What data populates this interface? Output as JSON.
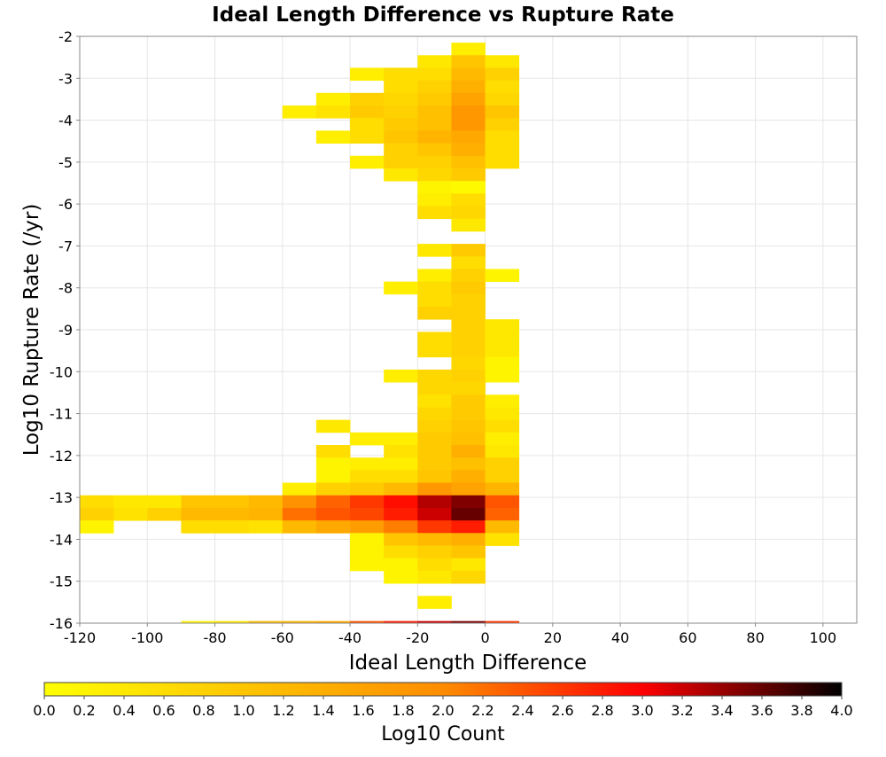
{
  "chart_data": {
    "type": "heatmap",
    "title": "Ideal Length Difference vs Rupture Rate",
    "xlabel": "Ideal Length Difference",
    "ylabel": "Log10 Rupture Rate (/yr)",
    "xlim": [
      -120,
      110
    ],
    "ylim": [
      -16,
      -2
    ],
    "x_ticks": [
      "-120",
      "-100",
      "-80",
      "-60",
      "-40",
      "-20",
      "0",
      "20",
      "40",
      "60",
      "80",
      "100"
    ],
    "y_ticks": [
      "-2",
      "-3",
      "-4",
      "-5",
      "-6",
      "-7",
      "-8",
      "-9",
      "-10",
      "-11",
      "-12",
      "-13",
      "-14",
      "-15",
      "-16"
    ],
    "grid": true,
    "bin_width": 10,
    "bin_height": 0.3,
    "colorbar": {
      "label": "Log10 Count",
      "min": 0.0,
      "max": 4.0,
      "ticks": [
        "0.0",
        "0.2",
        "0.4",
        "0.6",
        "0.8",
        "1.0",
        "1.2",
        "1.4",
        "1.6",
        "1.8",
        "2.0",
        "2.2",
        "2.4",
        "2.6",
        "2.8",
        "3.0",
        "3.2",
        "3.4",
        "3.6",
        "3.8",
        "4.0"
      ],
      "colors": [
        "#ffff00",
        "#ff8c00",
        "#ff0000",
        "#000000"
      ]
    },
    "cells": [
      {
        "x": -10,
        "y": -2.3,
        "v": 0.3
      },
      {
        "x": -20,
        "y": -2.6,
        "v": 0.4
      },
      {
        "x": -10,
        "y": -2.6,
        "v": 1.0
      },
      {
        "x": 0,
        "y": -2.6,
        "v": 0.4
      },
      {
        "x": -40,
        "y": -2.9,
        "v": 0.3
      },
      {
        "x": -30,
        "y": -2.9,
        "v": 0.6
      },
      {
        "x": -20,
        "y": -2.9,
        "v": 0.6
      },
      {
        "x": -10,
        "y": -2.9,
        "v": 1.2
      },
      {
        "x": 0,
        "y": -2.9,
        "v": 0.8
      },
      {
        "x": -30,
        "y": -3.2,
        "v": 0.6
      },
      {
        "x": -20,
        "y": -3.2,
        "v": 0.8
      },
      {
        "x": -10,
        "y": -3.2,
        "v": 1.4
      },
      {
        "x": 0,
        "y": -3.2,
        "v": 0.6
      },
      {
        "x": -50,
        "y": -3.5,
        "v": 0.3
      },
      {
        "x": -40,
        "y": -3.5,
        "v": 0.8
      },
      {
        "x": -30,
        "y": -3.5,
        "v": 0.7
      },
      {
        "x": -20,
        "y": -3.5,
        "v": 0.9
      },
      {
        "x": -10,
        "y": -3.5,
        "v": 1.6
      },
      {
        "x": 0,
        "y": -3.5,
        "v": 0.7
      },
      {
        "x": -60,
        "y": -3.8,
        "v": 0.3
      },
      {
        "x": -50,
        "y": -3.8,
        "v": 0.5
      },
      {
        "x": -40,
        "y": -3.8,
        "v": 0.9
      },
      {
        "x": -30,
        "y": -3.8,
        "v": 0.8
      },
      {
        "x": -20,
        "y": -3.8,
        "v": 1.1
      },
      {
        "x": -10,
        "y": -3.8,
        "v": 1.8
      },
      {
        "x": 0,
        "y": -3.8,
        "v": 1.0
      },
      {
        "x": -40,
        "y": -4.1,
        "v": 0.6
      },
      {
        "x": -30,
        "y": -4.1,
        "v": 0.9
      },
      {
        "x": -20,
        "y": -4.1,
        "v": 1.1
      },
      {
        "x": -10,
        "y": -4.1,
        "v": 1.8
      },
      {
        "x": 0,
        "y": -4.1,
        "v": 0.8
      },
      {
        "x": -50,
        "y": -4.4,
        "v": 0.3
      },
      {
        "x": -40,
        "y": -4.4,
        "v": 0.6
      },
      {
        "x": -30,
        "y": -4.4,
        "v": 1.0
      },
      {
        "x": -20,
        "y": -4.4,
        "v": 1.3
      },
      {
        "x": -10,
        "y": -4.4,
        "v": 1.5
      },
      {
        "x": 0,
        "y": -4.4,
        "v": 0.6
      },
      {
        "x": -30,
        "y": -4.7,
        "v": 0.8
      },
      {
        "x": -20,
        "y": -4.7,
        "v": 1.0
      },
      {
        "x": -10,
        "y": -4.7,
        "v": 1.4
      },
      {
        "x": 0,
        "y": -4.7,
        "v": 0.6
      },
      {
        "x": -40,
        "y": -5.0,
        "v": 0.3
      },
      {
        "x": -30,
        "y": -5.0,
        "v": 0.8
      },
      {
        "x": -20,
        "y": -5.0,
        "v": 0.8
      },
      {
        "x": -10,
        "y": -5.0,
        "v": 1.1
      },
      {
        "x": 0,
        "y": -5.0,
        "v": 0.6
      },
      {
        "x": -30,
        "y": -5.3,
        "v": 0.4
      },
      {
        "x": -20,
        "y": -5.3,
        "v": 0.7
      },
      {
        "x": -10,
        "y": -5.3,
        "v": 0.9
      },
      {
        "x": -20,
        "y": -5.6,
        "v": 0.2
      },
      {
        "x": -10,
        "y": -5.6,
        "v": 0.1
      },
      {
        "x": -20,
        "y": -5.9,
        "v": 0.3
      },
      {
        "x": -10,
        "y": -5.9,
        "v": 0.6
      },
      {
        "x": -20,
        "y": -6.2,
        "v": 0.6
      },
      {
        "x": -10,
        "y": -6.2,
        "v": 0.7
      },
      {
        "x": -10,
        "y": -6.5,
        "v": 0.4
      },
      {
        "x": -20,
        "y": -7.1,
        "v": 0.4
      },
      {
        "x": -10,
        "y": -7.1,
        "v": 0.9
      },
      {
        "x": -10,
        "y": -7.4,
        "v": 0.6
      },
      {
        "x": -20,
        "y": -7.7,
        "v": 0.3
      },
      {
        "x": -10,
        "y": -7.7,
        "v": 0.8
      },
      {
        "x": 0,
        "y": -7.7,
        "v": 0.2
      },
      {
        "x": -30,
        "y": -8.0,
        "v": 0.3
      },
      {
        "x": -20,
        "y": -8.0,
        "v": 0.6
      },
      {
        "x": -10,
        "y": -8.0,
        "v": 0.9
      },
      {
        "x": -20,
        "y": -8.3,
        "v": 0.6
      },
      {
        "x": -10,
        "y": -8.3,
        "v": 0.8
      },
      {
        "x": -20,
        "y": -8.6,
        "v": 0.8
      },
      {
        "x": -10,
        "y": -8.6,
        "v": 0.8
      },
      {
        "x": -10,
        "y": -8.9,
        "v": 0.8
      },
      {
        "x": 0,
        "y": -8.9,
        "v": 0.4
      },
      {
        "x": -20,
        "y": -9.2,
        "v": 0.6
      },
      {
        "x": -10,
        "y": -9.2,
        "v": 0.8
      },
      {
        "x": 0,
        "y": -9.2,
        "v": 0.4
      },
      {
        "x": -20,
        "y": -9.5,
        "v": 0.6
      },
      {
        "x": -10,
        "y": -9.5,
        "v": 0.8
      },
      {
        "x": 0,
        "y": -9.5,
        "v": 0.4
      },
      {
        "x": -10,
        "y": -9.8,
        "v": 0.7
      },
      {
        "x": 0,
        "y": -9.8,
        "v": 0.2
      },
      {
        "x": -30,
        "y": -10.1,
        "v": 0.3
      },
      {
        "x": -20,
        "y": -10.1,
        "v": 0.7
      },
      {
        "x": -10,
        "y": -10.1,
        "v": 0.8
      },
      {
        "x": 0,
        "y": -10.1,
        "v": 0.2
      },
      {
        "x": -20,
        "y": -10.4,
        "v": 0.7
      },
      {
        "x": -10,
        "y": -10.4,
        "v": 0.7
      },
      {
        "x": -20,
        "y": -10.7,
        "v": 0.5
      },
      {
        "x": -10,
        "y": -10.7,
        "v": 0.9
      },
      {
        "x": 0,
        "y": -10.7,
        "v": 0.3
      },
      {
        "x": -20,
        "y": -11.0,
        "v": 0.7
      },
      {
        "x": -10,
        "y": -11.0,
        "v": 0.9
      },
      {
        "x": 0,
        "y": -11.0,
        "v": 0.4
      },
      {
        "x": -50,
        "y": -11.3,
        "v": 0.4
      },
      {
        "x": -20,
        "y": -11.3,
        "v": 0.8
      },
      {
        "x": -10,
        "y": -11.3,
        "v": 1.0
      },
      {
        "x": 0,
        "y": -11.3,
        "v": 0.6
      },
      {
        "x": -40,
        "y": -11.6,
        "v": 0.3
      },
      {
        "x": -30,
        "y": -11.6,
        "v": 0.3
      },
      {
        "x": -20,
        "y": -11.6,
        "v": 0.9
      },
      {
        "x": -10,
        "y": -11.6,
        "v": 1.1
      },
      {
        "x": 0,
        "y": -11.6,
        "v": 0.3
      },
      {
        "x": -50,
        "y": -11.9,
        "v": 0.6
      },
      {
        "x": -30,
        "y": -11.9,
        "v": 0.5
      },
      {
        "x": -20,
        "y": -11.9,
        "v": 0.9
      },
      {
        "x": -10,
        "y": -11.9,
        "v": 1.4
      },
      {
        "x": 0,
        "y": -11.9,
        "v": 0.4
      },
      {
        "x": -50,
        "y": -12.2,
        "v": 0.2
      },
      {
        "x": -40,
        "y": -12.2,
        "v": 0.3
      },
      {
        "x": -30,
        "y": -12.2,
        "v": 0.3
      },
      {
        "x": -20,
        "y": -12.2,
        "v": 0.9
      },
      {
        "x": -10,
        "y": -12.2,
        "v": 1.1
      },
      {
        "x": 0,
        "y": -12.2,
        "v": 0.8
      },
      {
        "x": -50,
        "y": -12.5,
        "v": 0.2
      },
      {
        "x": -40,
        "y": -12.5,
        "v": 0.6
      },
      {
        "x": -30,
        "y": -12.5,
        "v": 0.6
      },
      {
        "x": -20,
        "y": -12.5,
        "v": 1.0
      },
      {
        "x": -10,
        "y": -12.5,
        "v": 1.4
      },
      {
        "x": 0,
        "y": -12.5,
        "v": 0.8
      },
      {
        "x": -60,
        "y": -12.8,
        "v": 0.3
      },
      {
        "x": -50,
        "y": -12.8,
        "v": 0.8
      },
      {
        "x": -40,
        "y": -12.8,
        "v": 0.9
      },
      {
        "x": -30,
        "y": -12.8,
        "v": 1.2
      },
      {
        "x": -20,
        "y": -12.8,
        "v": 1.8
      },
      {
        "x": -10,
        "y": -12.8,
        "v": 1.6
      },
      {
        "x": 0,
        "y": -12.8,
        "v": 1.3
      },
      {
        "x": -120,
        "y": -13.1,
        "v": 0.6
      },
      {
        "x": -110,
        "y": -13.1,
        "v": 0.4
      },
      {
        "x": -100,
        "y": -13.1,
        "v": 0.4
      },
      {
        "x": -90,
        "y": -13.1,
        "v": 1.0
      },
      {
        "x": -80,
        "y": -13.1,
        "v": 1.0
      },
      {
        "x": -70,
        "y": -13.1,
        "v": 1.2
      },
      {
        "x": -60,
        "y": -13.1,
        "v": 1.9
      },
      {
        "x": -50,
        "y": -13.1,
        "v": 2.3
      },
      {
        "x": -40,
        "y": -13.1,
        "v": 2.6
      },
      {
        "x": -30,
        "y": -13.1,
        "v": 2.9
      },
      {
        "x": -20,
        "y": -13.1,
        "v": 3.3
      },
      {
        "x": -10,
        "y": -13.1,
        "v": 3.5
      },
      {
        "x": 0,
        "y": -13.1,
        "v": 2.4
      },
      {
        "x": -120,
        "y": -13.4,
        "v": 0.8
      },
      {
        "x": -110,
        "y": -13.4,
        "v": 0.5
      },
      {
        "x": -100,
        "y": -13.4,
        "v": 0.8
      },
      {
        "x": -90,
        "y": -13.4,
        "v": 1.2
      },
      {
        "x": -80,
        "y": -13.4,
        "v": 1.2
      },
      {
        "x": -70,
        "y": -13.4,
        "v": 1.3
      },
      {
        "x": -60,
        "y": -13.4,
        "v": 2.2
      },
      {
        "x": -50,
        "y": -13.4,
        "v": 2.4
      },
      {
        "x": -40,
        "y": -13.4,
        "v": 2.5
      },
      {
        "x": -30,
        "y": -13.4,
        "v": 2.8
      },
      {
        "x": -20,
        "y": -13.4,
        "v": 3.2
      },
      {
        "x": -10,
        "y": -13.4,
        "v": 3.6
      },
      {
        "x": 0,
        "y": -13.4,
        "v": 2.3
      },
      {
        "x": -120,
        "y": -13.7,
        "v": 0.2
      },
      {
        "x": -90,
        "y": -13.7,
        "v": 0.6
      },
      {
        "x": -80,
        "y": -13.7,
        "v": 0.6
      },
      {
        "x": -70,
        "y": -13.7,
        "v": 0.5
      },
      {
        "x": -60,
        "y": -13.7,
        "v": 1.2
      },
      {
        "x": -50,
        "y": -13.7,
        "v": 1.5
      },
      {
        "x": -40,
        "y": -13.7,
        "v": 1.7
      },
      {
        "x": -30,
        "y": -13.7,
        "v": 2.1
      },
      {
        "x": -20,
        "y": -13.7,
        "v": 2.6
      },
      {
        "x": -10,
        "y": -13.7,
        "v": 2.8
      },
      {
        "x": 0,
        "y": -13.7,
        "v": 1.2
      },
      {
        "x": -40,
        "y": -14.0,
        "v": 0.2
      },
      {
        "x": -30,
        "y": -14.0,
        "v": 1.0
      },
      {
        "x": -20,
        "y": -14.0,
        "v": 1.2
      },
      {
        "x": -10,
        "y": -14.0,
        "v": 1.4
      },
      {
        "x": 0,
        "y": -14.0,
        "v": 0.5
      },
      {
        "x": -40,
        "y": -14.3,
        "v": 0.2
      },
      {
        "x": -30,
        "y": -14.3,
        "v": 0.6
      },
      {
        "x": -20,
        "y": -14.3,
        "v": 0.8
      },
      {
        "x": -10,
        "y": -14.3,
        "v": 1.0
      },
      {
        "x": -40,
        "y": -14.6,
        "v": 0.2
      },
      {
        "x": -30,
        "y": -14.6,
        "v": 0.2
      },
      {
        "x": -20,
        "y": -14.6,
        "v": 0.6
      },
      {
        "x": -10,
        "y": -14.6,
        "v": 0.4
      },
      {
        "x": -30,
        "y": -14.9,
        "v": 0.2
      },
      {
        "x": -20,
        "y": -14.9,
        "v": 0.4
      },
      {
        "x": -10,
        "y": -14.9,
        "v": 0.7
      },
      {
        "x": -20,
        "y": -15.5,
        "v": 0.3
      },
      {
        "x": -90,
        "y": -16.1,
        "v": 0.2
      },
      {
        "x": -80,
        "y": -16.1,
        "v": 0.4
      },
      {
        "x": -70,
        "y": -16.1,
        "v": 1.2
      },
      {
        "x": -60,
        "y": -16.1,
        "v": 1.3
      },
      {
        "x": -50,
        "y": -16.1,
        "v": 1.5
      },
      {
        "x": -40,
        "y": -16.1,
        "v": 2.4
      },
      {
        "x": -30,
        "y": -16.1,
        "v": 2.8
      },
      {
        "x": -20,
        "y": -16.1,
        "v": 3.2
      },
      {
        "x": -10,
        "y": -16.1,
        "v": 3.5
      },
      {
        "x": 0,
        "y": -16.1,
        "v": 2.6
      }
    ]
  }
}
